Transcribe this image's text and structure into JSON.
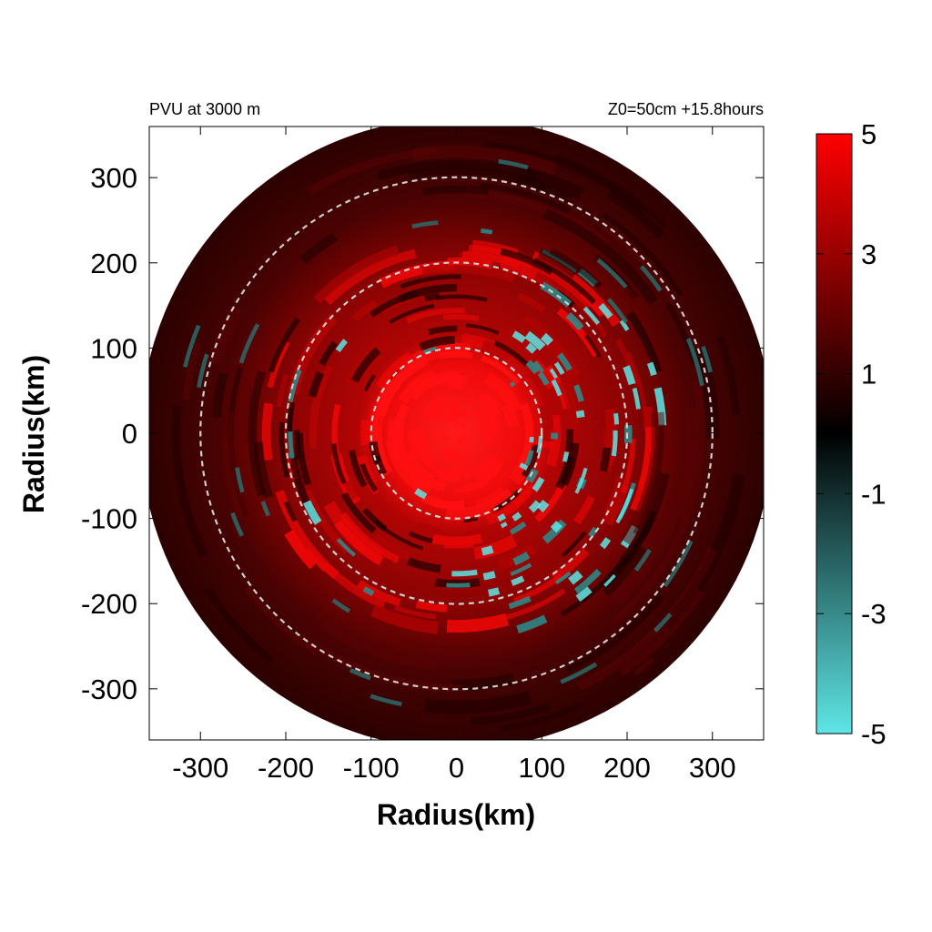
{
  "chart_data": {
    "type": "heatmap",
    "title_left": "PVU at  3000 m",
    "title_right": "Z0=50cm  +15.8hours",
    "xlabel": "Radius(km)",
    "ylabel": "Radius(km)",
    "xlim": [
      -360,
      360
    ],
    "ylim": [
      -360,
      360
    ],
    "xticks": [
      -300,
      -200,
      -100,
      0,
      100,
      200,
      300
    ],
    "yticks": [
      300,
      200,
      100,
      0,
      -100,
      -200,
      -300
    ],
    "domain_radius": 370,
    "reference_circles_km": [
      100,
      200,
      300
    ],
    "colorbar": {
      "min": -5,
      "max": 5,
      "ticks": [
        5,
        3,
        1,
        -1,
        -3,
        -5
      ],
      "colors": [
        "#5ee6e6",
        "#000000",
        "#ff0000"
      ]
    },
    "field_features": {
      "core": {
        "radius_km": 100,
        "mean_value": 4.5
      },
      "inner_band": {
        "radius_km": [
          100,
          220
        ],
        "mean_value": 2.5,
        "negative_patches": "cyan arcs, -3 to -5"
      },
      "outer_band": {
        "radius_km": [
          220,
          370
        ],
        "mean_value": 0.8
      }
    }
  }
}
